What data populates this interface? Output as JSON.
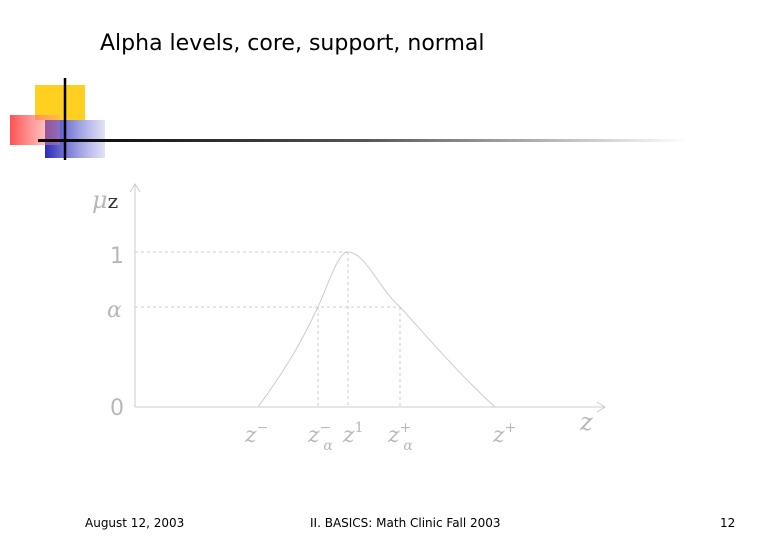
{
  "title": "Alpha levels, core, support, normal",
  "diagram": {
    "y_axis_label": {
      "base": "μ",
      "sub": "z"
    },
    "y_levels": [
      "1",
      "α",
      "0"
    ],
    "x_axis_label": "z",
    "x_labels": [
      {
        "base": "z",
        "sup": "−"
      },
      {
        "base": "z",
        "sup": "−",
        "sub": "α"
      },
      {
        "base": "z",
        "sup": "1"
      },
      {
        "base": "z",
        "sup": "+",
        "sub": "α"
      },
      {
        "base": "z",
        "sup": "+"
      }
    ]
  },
  "footer": {
    "date": "August 12, 2003",
    "course": "II. BASICS: Math Clinic Fall 2003",
    "page": "12"
  }
}
